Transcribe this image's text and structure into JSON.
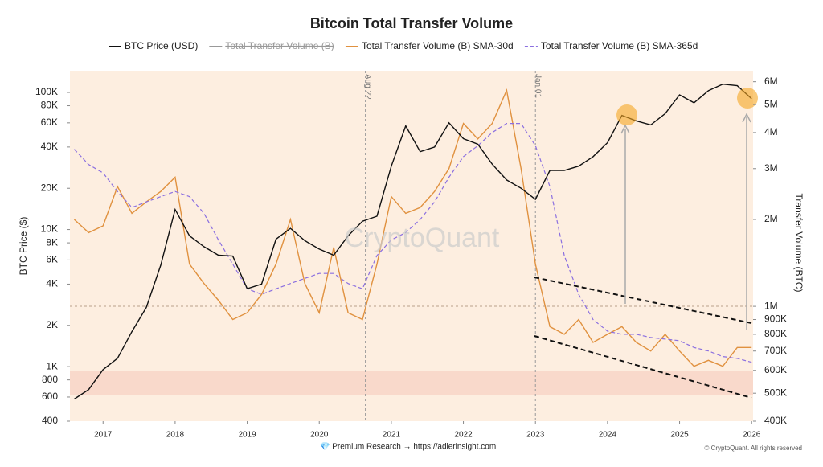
{
  "chart_data": {
    "type": "line",
    "title": "Bitcoin Total Transfer Volume",
    "ylabel": "BTC Price ($)",
    "y2label": "Transfer Volume (BTC)",
    "y_log": true,
    "y2_log": true,
    "x": [
      2016.6,
      2016.8,
      2017.0,
      2017.2,
      2017.4,
      2017.6,
      2017.8,
      2018.0,
      2018.2,
      2018.4,
      2018.6,
      2018.8,
      2019.0,
      2019.2,
      2019.4,
      2019.6,
      2019.8,
      2020.0,
      2020.2,
      2020.4,
      2020.6,
      2020.8,
      2021.0,
      2021.2,
      2021.4,
      2021.6,
      2021.8,
      2022.0,
      2022.2,
      2022.4,
      2022.6,
      2022.8,
      2023.0,
      2023.2,
      2023.4,
      2023.6,
      2023.8,
      2024.0,
      2024.2,
      2024.4,
      2024.6,
      2024.8,
      2025.0,
      2025.2,
      2025.4,
      2025.6,
      2025.8,
      2026.0
    ],
    "series": [
      {
        "name": "BTC Price (USD)",
        "color": "#111111",
        "axis": "y",
        "visible": true,
        "values": [
          580,
          680,
          950,
          1150,
          1800,
          2700,
          5500,
          14000,
          9000,
          7500,
          6500,
          6400,
          3700,
          4000,
          8500,
          10200,
          8300,
          7200,
          6500,
          9000,
          11500,
          12500,
          29000,
          57000,
          37000,
          40000,
          60000,
          46000,
          42000,
          30000,
          23000,
          20000,
          16600,
          27000,
          27000,
          29000,
          34000,
          43000,
          68000,
          62000,
          58000,
          70000,
          96000,
          84000,
          103000,
          115000,
          112000,
          90000
        ]
      },
      {
        "name": "Total Transfer Volume (B)",
        "color": "#999999",
        "axis": "y2",
        "visible": false
      },
      {
        "name": "Total Transfer Volume (B) SMA-30d",
        "color": "#e0913f",
        "axis": "y2",
        "visible": true,
        "values": [
          2000000,
          1800000,
          1900000,
          2600000,
          2100000,
          2300000,
          2500000,
          2800000,
          1400000,
          1200000,
          1050000,
          900000,
          950000,
          1100000,
          1400000,
          2000000,
          1200000,
          950000,
          1600000,
          950000,
          900000,
          1400000,
          2400000,
          2100000,
          2200000,
          2500000,
          3000000,
          4300000,
          3800000,
          4300000,
          5600000,
          3000000,
          1400000,
          850000,
          800000,
          900000,
          750000,
          800000,
          850000,
          750000,
          700000,
          800000,
          700000,
          620000,
          650000,
          620000,
          720000,
          720000
        ]
      },
      {
        "name": "Total Transfer Volume (B) SMA-365d",
        "color": "#8b6fe0",
        "axis": "y2",
        "visible": true,
        "dashed": true,
        "values": [
          3500000,
          3100000,
          2900000,
          2500000,
          2200000,
          2300000,
          2400000,
          2500000,
          2400000,
          2100000,
          1700000,
          1400000,
          1150000,
          1100000,
          1150000,
          1200000,
          1250000,
          1300000,
          1300000,
          1200000,
          1150000,
          1500000,
          1700000,
          1800000,
          2000000,
          2300000,
          2800000,
          3300000,
          3600000,
          4000000,
          4300000,
          4300000,
          3600000,
          2600000,
          1500000,
          1100000,
          900000,
          820000,
          800000,
          800000,
          780000,
          770000,
          760000,
          720000,
          700000,
          670000,
          660000,
          640000
        ]
      }
    ],
    "xlim": [
      2016.54,
      2026.02
    ],
    "xticks": [
      2017,
      2018,
      2019,
      2020,
      2021,
      2022,
      2023,
      2024,
      2025,
      2026
    ],
    "ylim": [
      400,
      144000
    ],
    "yticks": [
      400,
      600,
      800,
      {
        "value": 1000,
        "label": "1K"
      },
      {
        "value": 2000,
        "label": "2K"
      },
      {
        "value": 4000,
        "label": "4K"
      },
      {
        "value": 6000,
        "label": "6K"
      },
      {
        "value": 8000,
        "label": "8K"
      },
      {
        "value": 10000,
        "label": "10K"
      },
      {
        "value": 20000,
        "label": "20K"
      },
      {
        "value": 40000,
        "label": "40K"
      },
      {
        "value": 60000,
        "label": "60K"
      },
      {
        "value": 80000,
        "label": "80K"
      },
      {
        "value": 100000,
        "label": "100K"
      }
    ],
    "y2lim": [
      400000,
      6550000
    ],
    "y2ticks": [
      {
        "value": 400000,
        "label": "400K"
      },
      {
        "value": 500000,
        "label": "500K"
      },
      {
        "value": 600000,
        "label": "600K"
      },
      {
        "value": 700000,
        "label": "700K"
      },
      {
        "value": 800000,
        "label": "800K"
      },
      {
        "value": 900000,
        "label": "900K"
      },
      {
        "value": 1000000,
        "label": "1M"
      },
      {
        "value": 2000000,
        "label": "2M"
      },
      {
        "value": 3000000,
        "label": "3M"
      },
      {
        "value": 4000000,
        "label": "4M"
      },
      {
        "value": 5000000,
        "label": "5M"
      },
      {
        "value": 6000000,
        "label": "6M"
      }
    ],
    "annotations": [
      {
        "text": "Aug 22",
        "x": 2020.64
      },
      {
        "text": "Jan 01",
        "x": 2023.0
      }
    ],
    "watermark": "CryptoQuant",
    "footer": "💎 Premium Research → https://adlerinsight.com",
    "copyright": "© CryptoQuant. All rights reserved"
  }
}
